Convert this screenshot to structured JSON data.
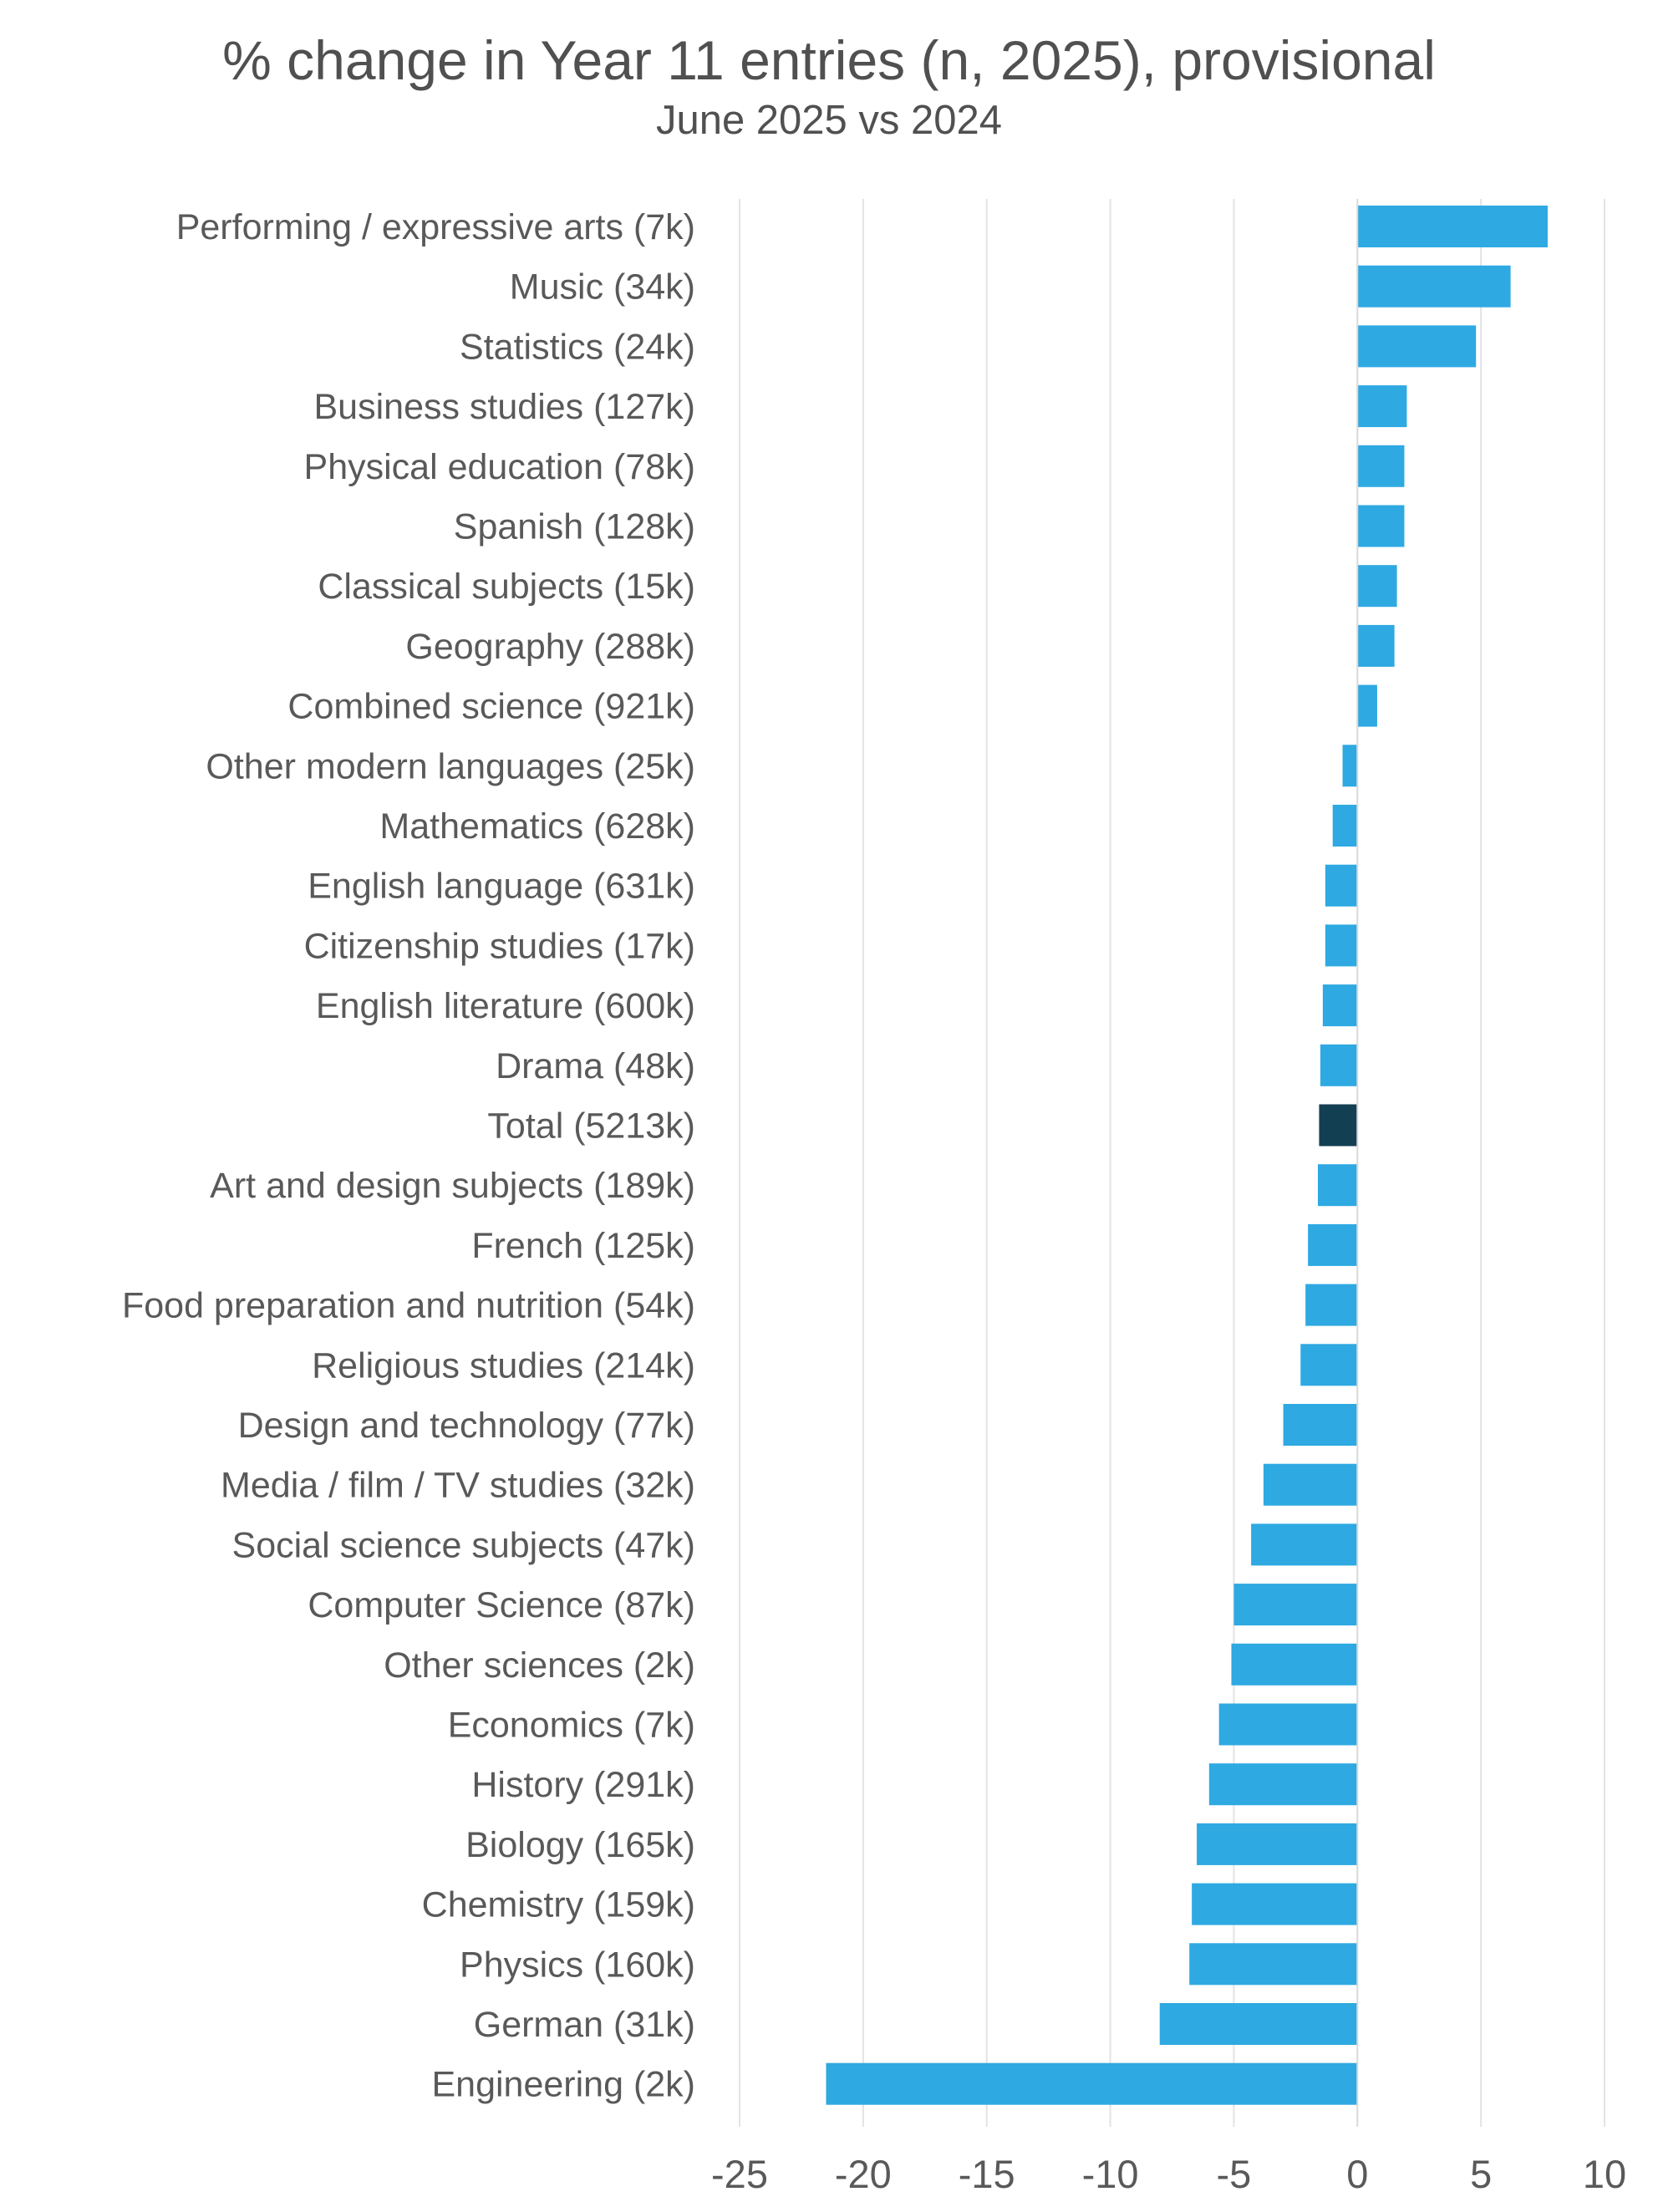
{
  "chart_data": {
    "type": "bar",
    "orientation": "horizontal",
    "title": "% change in Year 11 entries (n, 2025), provisional",
    "subtitle": "June 2025 vs 2024",
    "xlim": [
      -25,
      10
    ],
    "xticks": [
      -25,
      -20,
      -15,
      -10,
      -5,
      0,
      5,
      10
    ],
    "grid": true,
    "colors": {
      "bar": "#2ea9e2",
      "highlight": "#133f52",
      "grid": "#e3e3e3",
      "zero_line": "#d9d9d9"
    },
    "categories": [
      "Performing / expressive arts (7k)",
      "Music (34k)",
      "Statistics (24k)",
      "Business studies (127k)",
      "Physical education (78k)",
      "Spanish (128k)",
      "Classical subjects (15k)",
      "Geography (288k)",
      "Combined science (921k)",
      "Other modern languages (25k)",
      "Mathematics (628k)",
      "English language (631k)",
      "Citizenship studies (17k)",
      "English literature (600k)",
      "Drama (48k)",
      "Total (5213k)",
      "Art and design subjects (189k)",
      "French (125k)",
      "Food preparation and nutrition (54k)",
      "Religious studies (214k)",
      "Design and technology (77k)",
      "Media / film / TV studies (32k)",
      "Social science subjects (47k)",
      "Computer Science (87k)",
      "Other sciences (2k)",
      "Economics (7k)",
      "History (291k)",
      "Biology (165k)",
      "Chemistry (159k)",
      "Physics (160k)",
      "German (31k)",
      "Engineering (2k)"
    ],
    "values": [
      7.7,
      6.2,
      4.8,
      2.0,
      1.9,
      1.9,
      1.6,
      1.5,
      0.8,
      -0.6,
      -1.0,
      -1.3,
      -1.3,
      -1.4,
      -1.5,
      -1.55,
      -1.6,
      -2.0,
      -2.1,
      -2.3,
      -3.0,
      -3.8,
      -4.3,
      -5.0,
      -5.1,
      -5.6,
      -6.0,
      -6.5,
      -6.7,
      -6.8,
      -8.0,
      -21.5
    ],
    "highlight_category": "Total (5213k)"
  }
}
